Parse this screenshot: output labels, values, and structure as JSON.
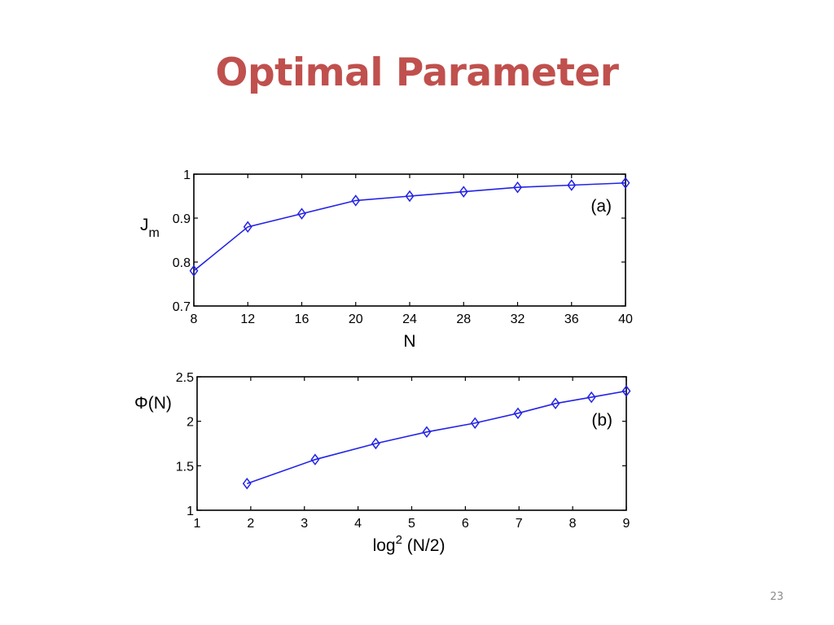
{
  "slide": {
    "title": "Optimal Parameter",
    "page_number": "23"
  },
  "chart_data": [
    {
      "type": "line",
      "panel_label": "(a)",
      "ylabel_main": "J",
      "ylabel_sub": "m",
      "xlabel": "N",
      "xlim": [
        8,
        40
      ],
      "ylim": [
        0.7,
        1.0
      ],
      "x_ticks": [
        "8",
        "12",
        "16",
        "20",
        "24",
        "28",
        "32",
        "36",
        "40"
      ],
      "x_tick_values": [
        8,
        12,
        16,
        20,
        24,
        28,
        32,
        36,
        40
      ],
      "y_ticks": [
        "0.7",
        "0.8",
        "0.9",
        "1"
      ],
      "y_tick_values": [
        0.7,
        0.8,
        0.9,
        1.0
      ],
      "marker": "diamond",
      "line_color": "#2323e6",
      "grid": false,
      "x": [
        8,
        12,
        16,
        20,
        24,
        28,
        32,
        36,
        40
      ],
      "y": [
        0.78,
        0.88,
        0.91,
        0.94,
        0.95,
        0.96,
        0.97,
        0.975,
        0.98
      ]
    },
    {
      "type": "line",
      "panel_label": "(b)",
      "ylabel_main": "Φ(N)",
      "xlabel_base": "log",
      "xlabel_sup": "2",
      "xlabel_rest": " (N/2)",
      "xlim": [
        1,
        9
      ],
      "ylim": [
        1,
        2.5
      ],
      "x_ticks": [
        "1",
        "2",
        "3",
        "4",
        "5",
        "6",
        "7",
        "8",
        "9"
      ],
      "x_tick_values": [
        1,
        2,
        3,
        4,
        5,
        6,
        7,
        8,
        9
      ],
      "y_ticks": [
        "1",
        "1.5",
        "2",
        "2.5"
      ],
      "y_tick_values": [
        1,
        1.5,
        2,
        2.5
      ],
      "marker": "diamond",
      "line_color": "#2323e6",
      "grid": false,
      "x": [
        1.93,
        3.2,
        4.33,
        5.28,
        6.18,
        6.98,
        7.68,
        8.35,
        9.0
      ],
      "y": [
        1.3,
        1.57,
        1.75,
        1.88,
        1.98,
        2.09,
        2.2,
        2.27,
        2.34
      ]
    }
  ]
}
